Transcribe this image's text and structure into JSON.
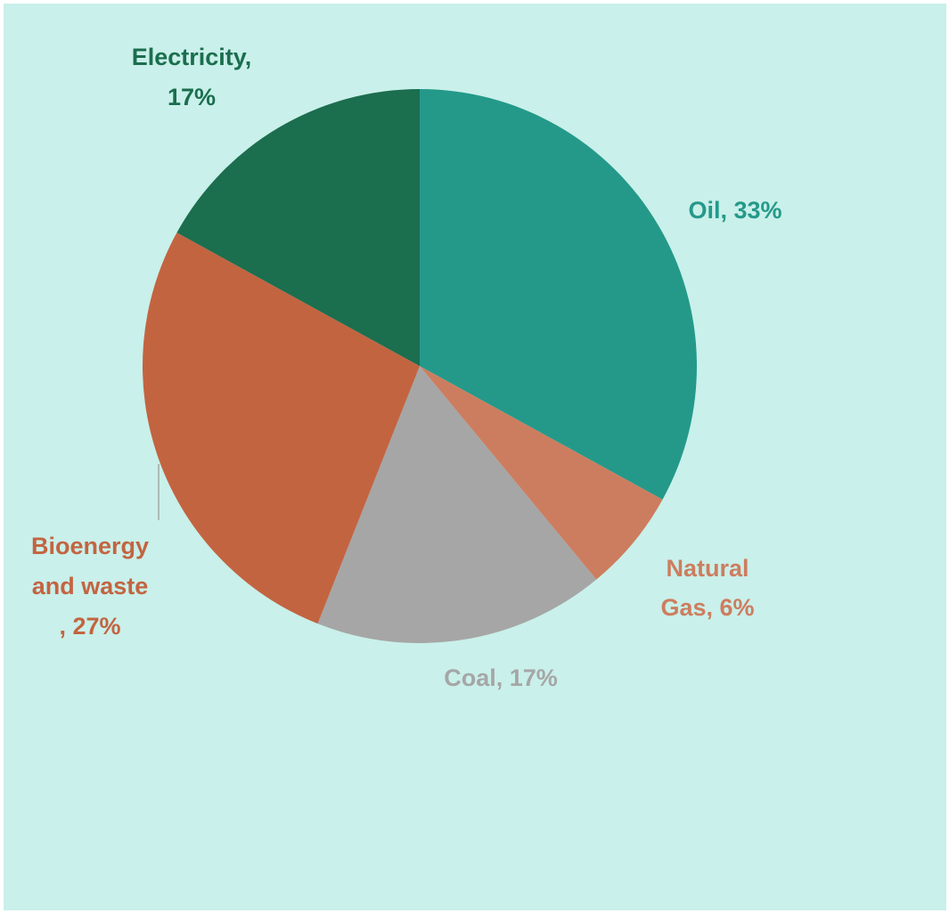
{
  "chart_data": {
    "type": "pie",
    "title": "",
    "start_angle_deg": 0,
    "direction": "clockwise",
    "slices": [
      {
        "name": "Oil",
        "value": 33,
        "color": "#24998a",
        "label_lines": [
          "Oil, 33%"
        ]
      },
      {
        "name": "Natural Gas",
        "value": 6,
        "color": "#cd7d5f",
        "label_lines": [
          "Natural",
          "Gas, 6%"
        ]
      },
      {
        "name": "Coal",
        "value": 17,
        "color": "#a6a6a6",
        "label_lines": [
          "Coal, 17%"
        ]
      },
      {
        "name": "Bioenergy and waste",
        "value": 27,
        "color": "#c36441",
        "label_lines": [
          "Bioenergy",
          "and waste",
          ", 27%"
        ]
      },
      {
        "name": "Electricity",
        "value": 17,
        "color": "#1b6e4e",
        "label_lines": [
          "Electricity,",
          "17%"
        ]
      }
    ]
  }
}
